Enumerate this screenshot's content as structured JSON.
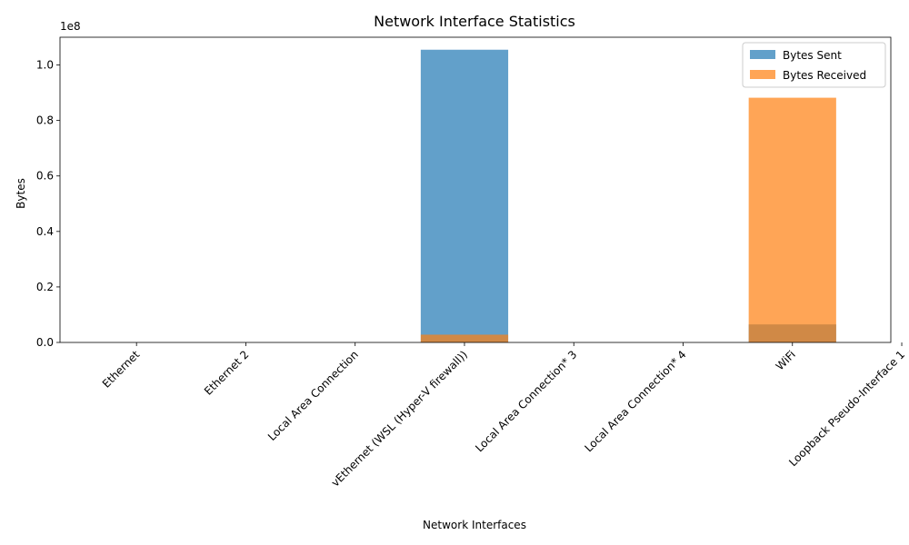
{
  "chart_data": {
    "type": "bar",
    "title": "Network Interface Statistics",
    "xlabel": "Network Interfaces",
    "ylabel": "Bytes",
    "y_offset_label": "1e8",
    "ylim": [
      0,
      1.1
    ],
    "yticks": [
      0.0,
      0.2,
      0.4,
      0.6,
      0.8,
      1.0
    ],
    "ytick_labels": [
      "0.0",
      "0.2",
      "0.4",
      "0.6",
      "0.8",
      "1.0"
    ],
    "categories": [
      "Ethernet",
      "Ethernet 2",
      "Local Area Connection",
      "vEthernet (WSL (Hyper-V firewall))",
      "Local Area Connection* 3",
      "Local Area Connection* 4",
      "WiFi",
      "Loopback Pseudo-Interface 1"
    ],
    "series": [
      {
        "name": "Bytes Sent",
        "color": "#1f77b4",
        "values": [
          0,
          0,
          0,
          1.055,
          0,
          0,
          0.065,
          0
        ]
      },
      {
        "name": "Bytes Received",
        "color": "#ff7f0e",
        "values": [
          0,
          0,
          0,
          0.028,
          0,
          0,
          0.882,
          0
        ]
      }
    ],
    "grid": false,
    "legend_position": "top-right"
  }
}
